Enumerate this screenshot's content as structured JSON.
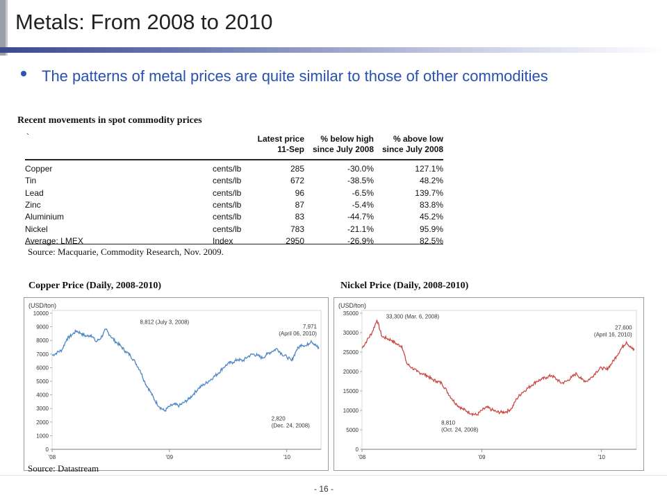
{
  "slide": {
    "title": "Metals: From 2008 to 2010",
    "bullet": "The patterns of metal prices are quite similar to those of other commodities",
    "table_caption": "Recent movements in spot commodity prices",
    "table_mark": "`",
    "table_source": "Source: Macquarie, Commodity Research, Nov. 2009.",
    "copper_caption": "Copper Price (Daily, 2008-2010)",
    "nickel_caption": "Nickel Price (Daily, 2008-2010)",
    "chart_source": "Source: Datastream",
    "page_number": "- 16 -"
  },
  "table": {
    "headers": {
      "price_1": "Latest price",
      "price_2": "11-Sep",
      "below_1": "% below high",
      "below_2": "since July 2008",
      "above_1": "% above low",
      "above_2": "since July 2008"
    },
    "rows": [
      {
        "name": "Copper",
        "unit": "cents/lb",
        "price": "285",
        "below": "-30.0%",
        "above": "127.1%"
      },
      {
        "name": "Tin",
        "unit": "cents/lb",
        "price": "672",
        "below": "-38.5%",
        "above": "48.2%"
      },
      {
        "name": "Lead",
        "unit": "cents/lb",
        "price": "96",
        "below": "-6.5%",
        "above": "139.7%"
      },
      {
        "name": "Zinc",
        "unit": "cents/lb",
        "price": "87",
        "below": "-5.4%",
        "above": "83.8%"
      },
      {
        "name": "Aluminium",
        "unit": "cents/lb",
        "price": "83",
        "below": "-44.7%",
        "above": "45.2%"
      },
      {
        "name": "Nickel",
        "unit": "cents/lb",
        "price": "783",
        "below": "-21.1%",
        "above": "95.9%"
      },
      {
        "name": "Average: LMEX",
        "unit": "Index",
        "price": "2950",
        "below": "-26.9%",
        "above": "82.5%"
      }
    ]
  },
  "chart_data": [
    {
      "type": "line",
      "id": "copper",
      "unit_label": "(USD/ton)",
      "color": "#4f86c6",
      "ylim": [
        0,
        10000
      ],
      "yticks": [
        0,
        1000,
        2000,
        3000,
        4000,
        5000,
        6000,
        7000,
        8000,
        9000,
        10000
      ],
      "xlim": [
        0,
        27.5
      ],
      "xticks": [
        {
          "x": 0,
          "label": "'08"
        },
        {
          "x": 12,
          "label": "'09"
        },
        {
          "x": 24,
          "label": "'10"
        }
      ],
      "x": [
        0,
        0.5,
        1,
        1.5,
        2,
        2.5,
        3,
        3.5,
        4,
        4.5,
        5,
        5.5,
        6,
        6.5,
        7,
        7.5,
        8,
        8.5,
        9,
        9.5,
        10,
        10.5,
        11,
        11.5,
        12,
        12.5,
        13,
        13.5,
        14,
        14.5,
        15,
        15.5,
        16,
        16.5,
        17,
        17.5,
        18,
        18.5,
        19,
        19.5,
        20,
        20.5,
        21,
        21.5,
        22,
        22.5,
        23,
        23.5,
        24,
        24.5,
        25,
        25.5,
        26,
        26.5,
        27,
        27.3
      ],
      "values": [
        6900,
        7100,
        7300,
        8100,
        8400,
        8700,
        8500,
        8300,
        8400,
        7900,
        8200,
        8812,
        8300,
        7900,
        7600,
        7200,
        6900,
        6400,
        5800,
        4900,
        4300,
        3600,
        3100,
        2820,
        3150,
        3300,
        3200,
        3450,
        3700,
        4100,
        4500,
        4750,
        5000,
        5300,
        5600,
        6000,
        6300,
        6400,
        6600,
        6500,
        6800,
        7000,
        6900,
        6700,
        7000,
        7200,
        7400,
        7000,
        6800,
        6500,
        7300,
        7700,
        7600,
        7971,
        7600,
        7400
      ],
      "annotations": [
        {
          "x": 11.5,
          "y": 8812,
          "l1": "8,812 (July  3, 2008)",
          "l2": "",
          "pos": "above"
        },
        {
          "x": 23,
          "y": 2820,
          "l1": "2,820",
          "l2": "(Dec. 24, 2008)",
          "pos": "below"
        },
        {
          "x": 26.5,
          "y": 7971,
          "l1": "7,971",
          "l2": "(April 06, 2010)",
          "pos": "above-left"
        }
      ]
    },
    {
      "type": "line",
      "id": "nickel",
      "unit_label": "(USD/ton)",
      "color": "#c94a45",
      "ylim": [
        0,
        35000
      ],
      "yticks": [
        0,
        5000,
        10000,
        15000,
        20000,
        25000,
        30000,
        35000
      ],
      "xlim": [
        0,
        27.5
      ],
      "xticks": [
        {
          "x": 0,
          "label": "'08"
        },
        {
          "x": 12,
          "label": "'09"
        },
        {
          "x": 24,
          "label": "'10"
        }
      ],
      "x": [
        0,
        0.5,
        1,
        1.5,
        2,
        2.5,
        3,
        3.5,
        4,
        4.5,
        5,
        5.5,
        6,
        6.5,
        7,
        7.5,
        8,
        8.5,
        9,
        9.5,
        10,
        10.5,
        11,
        11.5,
        12,
        12.5,
        13,
        13.5,
        14,
        14.5,
        15,
        15.5,
        16,
        16.5,
        17,
        17.5,
        18,
        18.5,
        19,
        19.5,
        20,
        20.5,
        21,
        21.5,
        22,
        22.5,
        23,
        23.5,
        24,
        24.5,
        25,
        25.5,
        26,
        26.5,
        27,
        27.3
      ],
      "values": [
        26000,
        28000,
        30000,
        33300,
        29000,
        28500,
        28000,
        27000,
        26500,
        22000,
        21000,
        20000,
        19500,
        19000,
        18000,
        17500,
        17000,
        15000,
        13000,
        11500,
        10500,
        9800,
        9200,
        8810,
        10000,
        10800,
        10200,
        9600,
        9500,
        9700,
        10500,
        13000,
        14500,
        15500,
        16500,
        17500,
        18000,
        18500,
        19000,
        18000,
        17000,
        17500,
        18500,
        19500,
        18000,
        17500,
        18500,
        20000,
        21000,
        20500,
        22000,
        24000,
        26000,
        27600,
        26000,
        25500
      ],
      "annotations": [
        {
          "x": 2,
          "y": 33300,
          "l1": "33,300 (Mar.  6, 2008)",
          "l2": "",
          "pos": "right"
        },
        {
          "x": 8.5,
          "y": 8810,
          "l1": "8,810",
          "l2": "(Oct. 24, 2008)",
          "pos": "below"
        },
        {
          "x": 26.5,
          "y": 27600,
          "l1": "27,600",
          "l2": "(April  16, 2010)",
          "pos": "above-left"
        }
      ]
    }
  ]
}
